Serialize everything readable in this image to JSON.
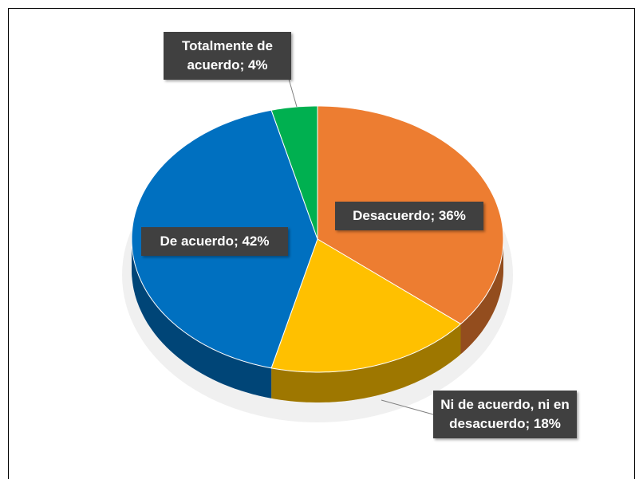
{
  "chart_data": {
    "type": "pie",
    "categories": [
      "Desacuerdo",
      "Ni de acuerdo, ni en desacuerdo",
      "De acuerdo",
      "Totalmente de acuerdo"
    ],
    "values": [
      36,
      18,
      42,
      4
    ],
    "value_labels": [
      "; 36%",
      "; 18%",
      "; 42%",
      "; 4%"
    ],
    "colors": [
      "#ed7d31",
      "#ffc000",
      "#0070c0",
      "#00b050"
    ],
    "three_d": true
  }
}
